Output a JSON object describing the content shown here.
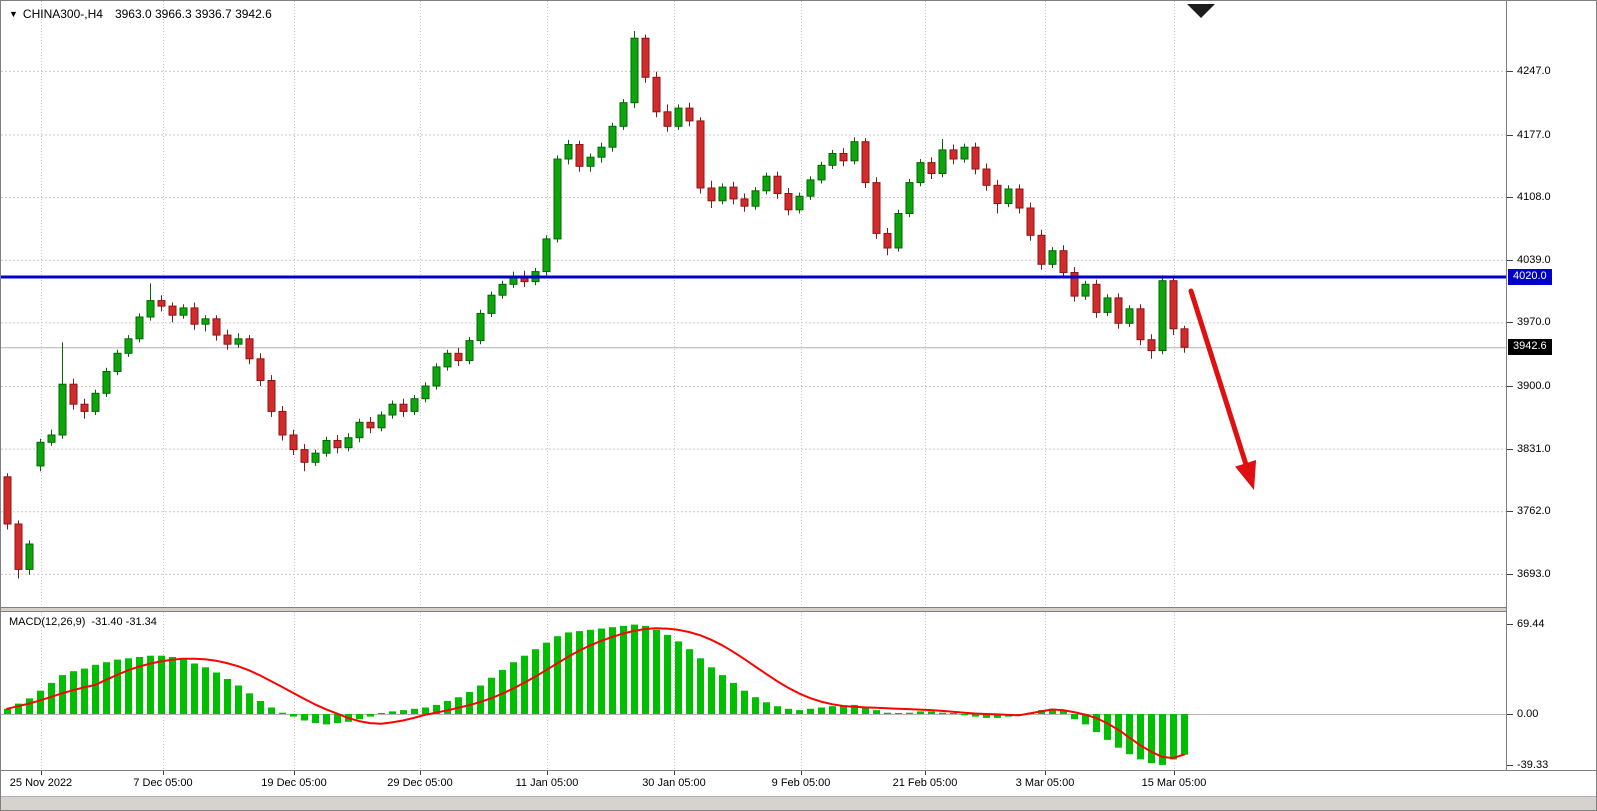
{
  "window": {
    "legend": {
      "marker_icon": "▼",
      "symbol_period": "CHINA300-,H4",
      "ohlc": "3963.0 3966.3 3936.7 3942.6"
    }
  },
  "colors": {
    "up": "#0ca60c",
    "up_stroke": "#056605",
    "down": "#d22b2b",
    "down_stroke": "#8e1616",
    "macd_bar": "#00bf00",
    "macd_signal": "#ff0000",
    "blue_line": "#0000c8",
    "grid": "#c9c9c9",
    "zero_line": "#b4b4b4",
    "current_price_line": "#b4b4b4",
    "arrow": "#e01010",
    "current_badge_bg": "#000000",
    "shift_marker": "#1c1c1c"
  },
  "chart_data": {
    "type": "candlestick+macd_histogram",
    "symbol": "CHINA300-",
    "timeframe": "H4",
    "current_ohlc": {
      "open": 3963.0,
      "high": 3966.3,
      "low": 3936.7,
      "close": 3942.6
    },
    "price_axis": {
      "gridlines": [
        4247.0,
        4177.0,
        4108.0,
        4039.0,
        3970.0,
        3900.0,
        3831.0,
        3762.0,
        3693.0
      ]
    },
    "time_axis": {
      "labels": [
        "25 Nov 2022",
        "7 Dec 05:00",
        "19 Dec 05:00",
        "29 Dec 05:00",
        "11 Jan 05:00",
        "30 Jan 05:00",
        "9 Feb 05:00",
        "21 Feb 05:00",
        "3 Mar 05:00",
        "15 Mar 05:00"
      ]
    },
    "horizontal_line": {
      "price": 4020.0,
      "label": "4020.0"
    },
    "current_price": {
      "value": 3942.6,
      "label": "3942.6"
    },
    "candles": [
      [
        3800,
        3804,
        3742,
        3748
      ],
      [
        3748,
        3752,
        3688,
        3698
      ],
      [
        3698,
        3730,
        3692,
        3726
      ],
      [
        3812,
        3842,
        3806,
        3838
      ],
      [
        3838,
        3852,
        3834,
        3846
      ],
      [
        3846,
        3948,
        3842,
        3902
      ],
      [
        3902,
        3908,
        3874,
        3880
      ],
      [
        3880,
        3886,
        3864,
        3872
      ],
      [
        3872,
        3896,
        3868,
        3892
      ],
      [
        3892,
        3920,
        3888,
        3916
      ],
      [
        3916,
        3940,
        3912,
        3936
      ],
      [
        3936,
        3956,
        3932,
        3952
      ],
      [
        3952,
        3980,
        3948,
        3976
      ],
      [
        3976,
        4013,
        3972,
        3994
      ],
      [
        3994,
        4000,
        3982,
        3988
      ],
      [
        3988,
        3992,
        3970,
        3978
      ],
      [
        3978,
        3990,
        3974,
        3986
      ],
      [
        3986,
        3992,
        3962,
        3968
      ],
      [
        3968,
        3978,
        3960,
        3974
      ],
      [
        3974,
        3978,
        3950,
        3956
      ],
      [
        3956,
        3962,
        3940,
        3946
      ],
      [
        3946,
        3958,
        3942,
        3952
      ],
      [
        3952,
        3956,
        3924,
        3930
      ],
      [
        3930,
        3936,
        3900,
        3906
      ],
      [
        3906,
        3912,
        3866,
        3872
      ],
      [
        3872,
        3878,
        3840,
        3846
      ],
      [
        3846,
        3852,
        3824,
        3830
      ],
      [
        3830,
        3836,
        3806,
        3816
      ],
      [
        3816,
        3830,
        3812,
        3826
      ],
      [
        3826,
        3844,
        3822,
        3840
      ],
      [
        3840,
        3846,
        3826,
        3832
      ],
      [
        3832,
        3848,
        3828,
        3843
      ],
      [
        3843,
        3864,
        3838,
        3860
      ],
      [
        3860,
        3866,
        3848,
        3854
      ],
      [
        3854,
        3872,
        3850,
        3868
      ],
      [
        3868,
        3884,
        3864,
        3880
      ],
      [
        3880,
        3886,
        3866,
        3872
      ],
      [
        3872,
        3890,
        3868,
        3886
      ],
      [
        3886,
        3904,
        3882,
        3900
      ],
      [
        3900,
        3925,
        3896,
        3921
      ],
      [
        3921,
        3940,
        3917,
        3936
      ],
      [
        3936,
        3942,
        3922,
        3928
      ],
      [
        3928,
        3954,
        3924,
        3950
      ],
      [
        3950,
        3984,
        3946,
        3980
      ],
      [
        3980,
        4004,
        3976,
        4000
      ],
      [
        4000,
        4016,
        3996,
        4012
      ],
      [
        4012,
        4026,
        4008,
        4021
      ],
      [
        4021,
        4027,
        4009,
        4015
      ],
      [
        4015,
        4030,
        4011,
        4026
      ],
      [
        4026,
        4066,
        4022,
        4062
      ],
      [
        4062,
        4154,
        4058,
        4150
      ],
      [
        4150,
        4171,
        4144,
        4166
      ],
      [
        4166,
        4170,
        4136,
        4142
      ],
      [
        4142,
        4156,
        4136,
        4152
      ],
      [
        4152,
        4168,
        4146,
        4163
      ],
      [
        4163,
        4190,
        4158,
        4186
      ],
      [
        4186,
        4216,
        4182,
        4212
      ],
      [
        4212,
        4291,
        4206,
        4283
      ],
      [
        4283,
        4287,
        4234,
        4240
      ],
      [
        4240,
        4246,
        4196,
        4202
      ],
      [
        4202,
        4210,
        4180,
        4186
      ],
      [
        4186,
        4210,
        4182,
        4206
      ],
      [
        4206,
        4212,
        4186,
        4192
      ],
      [
        4192,
        4196,
        4112,
        4118
      ],
      [
        4118,
        4126,
        4096,
        4104
      ],
      [
        4104,
        4123,
        4100,
        4119
      ],
      [
        4119,
        4125,
        4100,
        4106
      ],
      [
        4106,
        4112,
        4092,
        4098
      ],
      [
        4098,
        4119,
        4094,
        4115
      ],
      [
        4115,
        4135,
        4111,
        4131
      ],
      [
        4131,
        4136,
        4106,
        4112
      ],
      [
        4112,
        4118,
        4088,
        4094
      ],
      [
        4094,
        4113,
        4090,
        4109
      ],
      [
        4109,
        4131,
        4105,
        4127
      ],
      [
        4127,
        4147,
        4123,
        4143
      ],
      [
        4143,
        4160,
        4139,
        4156
      ],
      [
        4156,
        4162,
        4142,
        4148
      ],
      [
        4148,
        4174,
        4144,
        4169
      ],
      [
        4169,
        4173,
        4118,
        4124
      ],
      [
        4124,
        4130,
        4062,
        4068
      ],
      [
        4068,
        4074,
        4044,
        4052
      ],
      [
        4052,
        4094,
        4048,
        4090
      ],
      [
        4090,
        4128,
        4086,
        4124
      ],
      [
        4124,
        4150,
        4120,
        4146
      ],
      [
        4146,
        4152,
        4128,
        4134
      ],
      [
        4134,
        4172,
        4130,
        4160
      ],
      [
        4160,
        4166,
        4144,
        4150
      ],
      [
        4150,
        4167,
        4146,
        4163
      ],
      [
        4163,
        4168,
        4133,
        4139
      ],
      [
        4139,
        4145,
        4115,
        4121
      ],
      [
        4121,
        4127,
        4090,
        4101
      ],
      [
        4101,
        4121,
        4097,
        4117
      ],
      [
        4117,
        4122,
        4090,
        4096
      ],
      [
        4096,
        4102,
        4060,
        4066
      ],
      [
        4066,
        4072,
        4028,
        4034
      ],
      [
        4034,
        4053,
        4030,
        4049
      ],
      [
        4049,
        4055,
        4019,
        4025
      ],
      [
        4025,
        4031,
        3993,
        3999
      ],
      [
        3999,
        4016,
        3995,
        4012
      ],
      [
        4012,
        4017,
        3975,
        3981
      ],
      [
        3981,
        4001,
        3977,
        3997
      ],
      [
        3997,
        4002,
        3963,
        3969
      ],
      [
        3969,
        3989,
        3965,
        3985
      ],
      [
        3985,
        3990,
        3945,
        3951
      ],
      [
        3951,
        3957,
        3930,
        3939
      ],
      [
        3939,
        4022,
        3935,
        4016
      ],
      [
        4016,
        4020,
        3956,
        3963
      ],
      [
        3963.0,
        3966.3,
        3936.7,
        3942.6
      ]
    ],
    "macd": {
      "label": "MACD(12,26,9)",
      "values_text": "-31.40 -31.34",
      "main_value": -31.4,
      "signal_value": -31.34,
      "axis_labels": [
        69.44,
        0.0,
        -39.33
      ],
      "histogram": [
        4,
        8,
        12,
        18,
        24,
        30,
        33,
        35,
        38,
        40,
        42,
        43,
        44,
        45,
        45,
        44,
        42,
        39,
        36,
        32,
        27,
        22,
        16,
        10,
        5,
        1,
        -2,
        -5,
        -7,
        -8,
        -7,
        -6,
        -4,
        -2,
        0,
        2,
        3,
        4,
        5,
        7,
        10,
        13,
        17,
        22,
        28,
        34,
        40,
        45,
        50,
        55,
        60,
        63,
        64,
        65,
        66,
        67,
        68,
        69,
        68,
        65,
        61,
        56,
        50,
        43,
        36,
        30,
        24,
        18,
        13,
        9,
        6,
        4,
        3,
        4,
        5,
        6,
        6,
        7,
        5,
        3,
        1,
        0,
        1,
        2,
        2,
        1,
        0,
        -1,
        -2,
        -3,
        -3,
        -2,
        -1,
        1,
        3,
        4,
        3,
        -4,
        -8,
        -14,
        -20,
        -26,
        -31,
        -35,
        -38,
        -39.3,
        -35,
        -31.4
      ],
      "signal": [
        4,
        6,
        8,
        10.5,
        13.2,
        16,
        18.4,
        20.5,
        22.4,
        26.4,
        30.2,
        33.7,
        36.6,
        38.9,
        40.6,
        41.8,
        42.6,
        42.7,
        42.2,
        41.1,
        39.3,
        36.9,
        33.7,
        29.8,
        25.4,
        20.9,
        16.3,
        11.8,
        7.4,
        3.6,
        0.3,
        -3,
        -5.5,
        -7,
        -7.5,
        -6.5,
        -5,
        -3,
        -0.6,
        1,
        2.8,
        4.7,
        6.8,
        9.2,
        12.1,
        15.6,
        19.6,
        24,
        28.8,
        33.8,
        39,
        44.1,
        48.8,
        52.9,
        56.4,
        59.4,
        62,
        64.1,
        65.6,
        66.1,
        65.9,
        65,
        63.3,
        60.8,
        57.3,
        53.1,
        48.1,
        42.6,
        36.8,
        31,
        25.4,
        20.3,
        15.9,
        12.3,
        9.6,
        7.6,
        6.2,
        5.6,
        5.1,
        4.8,
        4.4,
        4.1,
        3.8,
        3.4,
        3,
        2.4,
        1.7,
        1,
        0.4,
        0,
        -0.3,
        -0.7,
        -1,
        0.5,
        2,
        3.5,
        3,
        1.5,
        -0.5,
        -3,
        -7,
        -12,
        -18,
        -24,
        -29,
        -33,
        -34,
        -31.3
      ]
    }
  }
}
